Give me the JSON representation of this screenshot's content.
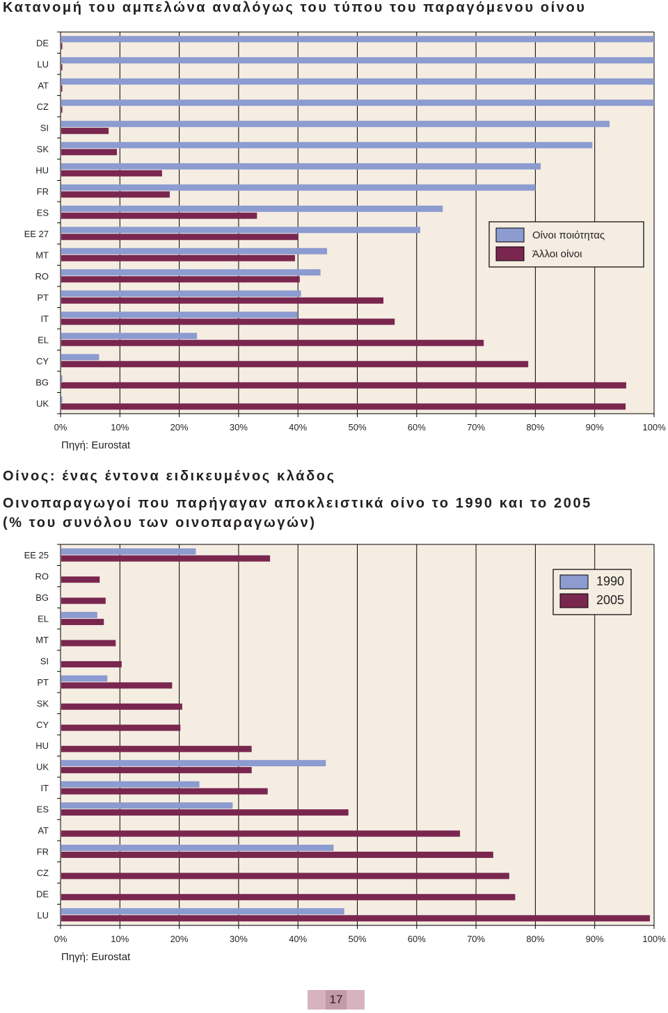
{
  "page": {
    "section_heading": "Οίνος: ένας έντονα ειδικευμένος κλάδος",
    "page_number": "17"
  },
  "colors": {
    "plot_background": "#f5ede2",
    "series_primary": "#8c9bd0",
    "series_secondary": "#7a2750",
    "grid": "#000000"
  },
  "chart_data": [
    {
      "type": "bar",
      "orientation": "horizontal",
      "title": "Κατανομή του αμπελώνα αναλόγως του τύπου του παραγόμενου οίνου",
      "source": "Πηγή: Eurostat",
      "categories": [
        "DE",
        "LU",
        "AT",
        "CZ",
        "SI",
        "SK",
        "HU",
        "FR",
        "ES",
        "EE 27",
        "MT",
        "RO",
        "PT",
        "IT",
        "EL",
        "CY",
        "BG",
        "UK"
      ],
      "series": [
        {
          "name": "Οίνοι ποιότητας",
          "color": "#8c9bd0",
          "values": [
            100,
            100,
            100,
            100,
            92.5,
            89.6,
            80.9,
            80.0,
            64.4,
            60.6,
            44.9,
            43.8,
            40.5,
            39.9,
            23.0,
            6.5,
            0.3,
            0.3
          ]
        },
        {
          "name": "Άλλοι οίνοι",
          "color": "#7a2750",
          "values": [
            0.3,
            0.3,
            0.3,
            0.3,
            8.1,
            9.5,
            17.1,
            18.4,
            33.1,
            40.0,
            39.5,
            40.3,
            54.4,
            56.3,
            71.3,
            78.8,
            95.3,
            95.2
          ]
        }
      ],
      "xlim": [
        0,
        100
      ],
      "xticks": [
        "0%",
        "10%",
        "20%",
        "30%",
        "40%",
        "50%",
        "60%",
        "70%",
        "80%",
        "90%",
        "100%"
      ],
      "legend_position": "right"
    },
    {
      "type": "bar",
      "orientation": "horizontal",
      "title": "Οινοπαραγωγοί που παρήγαγαν αποκλειστικά οίνο το 1990 και το 2005 (% του συνόλου των οινοπαραγωγών)",
      "title_lines": [
        "Οινοπαραγωγοί που παρήγαγαν αποκλειστικά οίνο το 1990 και το 2005",
        "(% του συνόλου των οινοπαραγωγών)"
      ],
      "source": "Πηγή: Eurostat",
      "categories": [
        "EE 25",
        "RO",
        "BG",
        "EL",
        "MT",
        "SI",
        "PT",
        "SK",
        "CY",
        "HU",
        "UK",
        "IT",
        "ES",
        "AT",
        "FR",
        "CZ",
        "DE",
        "LU"
      ],
      "series": [
        {
          "name": "1990",
          "color": "#8c9bd0",
          "values": [
            22.8,
            null,
            null,
            6.2,
            null,
            null,
            7.9,
            null,
            null,
            null,
            44.7,
            23.4,
            29.0,
            null,
            46.0,
            null,
            null,
            47.8
          ]
        },
        {
          "name": "2005",
          "color": "#7a2750",
          "values": [
            35.3,
            6.6,
            7.6,
            7.3,
            9.3,
            10.3,
            18.8,
            20.5,
            20.2,
            32.2,
            32.2,
            34.9,
            48.5,
            67.3,
            72.9,
            75.6,
            76.6,
            99.3
          ]
        }
      ],
      "xlim": [
        0,
        100
      ],
      "xticks": [
        "0%",
        "10%",
        "20%",
        "30%",
        "40%",
        "50%",
        "60%",
        "70%",
        "80%",
        "90%",
        "100%"
      ],
      "legend_position": "top-right"
    }
  ]
}
